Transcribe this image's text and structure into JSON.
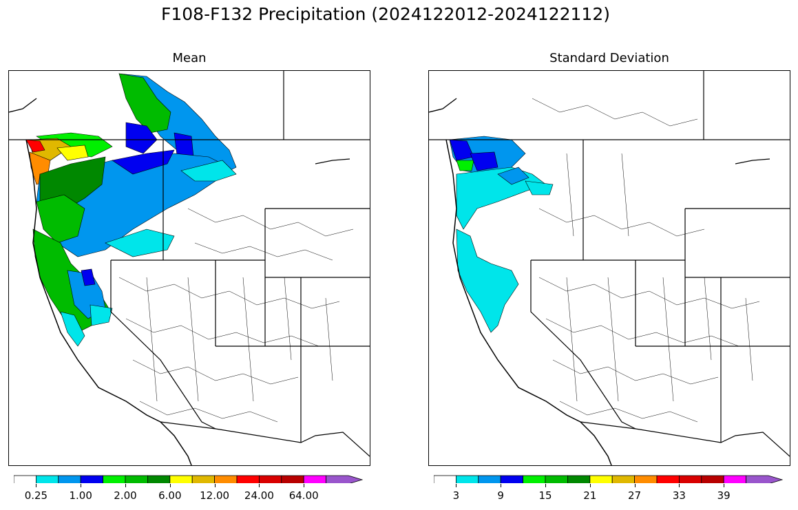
{
  "figure": {
    "title": "F108-F132 Precipitation (2024122012-2024122112)"
  },
  "panels": {
    "mean": {
      "title": "Mean",
      "colorbar": {
        "colors": [
          "#ffffff",
          "#00e5ea",
          "#0096ee",
          "#0000f0",
          "#00f000",
          "#00bb00",
          "#008800",
          "#ffff00",
          "#e0b800",
          "#ff8c00",
          "#ff0000",
          "#d90000",
          "#b80000",
          "#ff00ff",
          "#9955cc"
        ],
        "tick_labels": [
          "0.25",
          "1.00",
          "2.00",
          "6.00",
          "12.00",
          "24.00",
          "64.00"
        ]
      }
    },
    "stddev": {
      "title": "Standard Deviation",
      "colorbar": {
        "colors": [
          "#ffffff",
          "#00e5ea",
          "#0096ee",
          "#0000f0",
          "#00f000",
          "#00bb00",
          "#008800",
          "#ffff00",
          "#e0b800",
          "#ff8c00",
          "#ff0000",
          "#d90000",
          "#b80000",
          "#ff00ff",
          "#9955cc"
        ],
        "tick_labels": [
          "3",
          "9",
          "15",
          "21",
          "27",
          "33",
          "39"
        ]
      }
    }
  }
}
